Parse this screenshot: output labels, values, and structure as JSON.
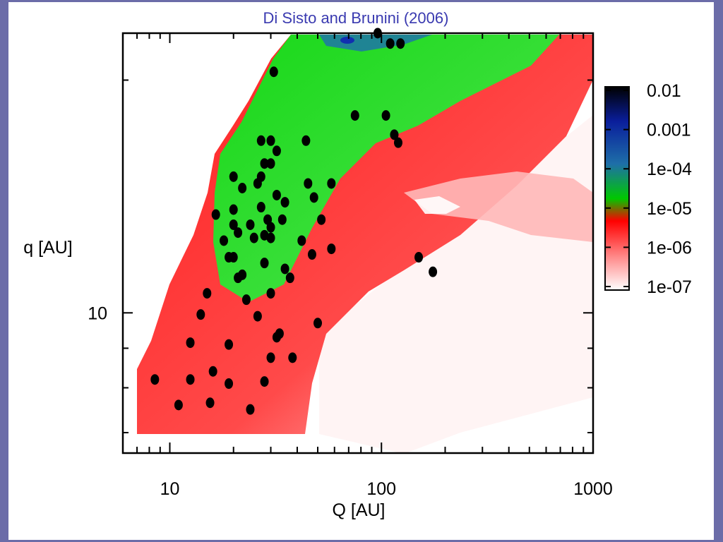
{
  "slide": {
    "title": "Di Sisto and Brunini (2006)",
    "background_color": "#6b6ca8",
    "title_color": "#3a3ab0"
  },
  "chart_data": {
    "type": "heatmap",
    "title": "Di Sisto and Brunini (2006)",
    "xlabel": "Q [AU]",
    "ylabel": "q [AU]",
    "x_scale": "log",
    "y_scale": "log",
    "xlim": [
      6,
      1000
    ],
    "ylim": [
      6.6,
      23
    ],
    "x_ticks": [
      {
        "value": 10,
        "label": "10"
      },
      {
        "value": 100,
        "label": "100"
      },
      {
        "value": 1000,
        "label": "1000"
      }
    ],
    "y_ticks": [
      {
        "value": 10,
        "label": "10"
      }
    ],
    "colorbar": {
      "scale": "log",
      "ticks": [
        "0.01",
        "0.001",
        "1e-04",
        "1e-05",
        "1e-06",
        "1e-07"
      ],
      "colors": [
        "#000000",
        "#0a1e9c",
        "#1e6fa8",
        "#00c800",
        "#ff0000",
        "#ff9090",
        "#ffffff"
      ]
    },
    "series": [
      {
        "type": "scatter",
        "color": "#000000",
        "points": [
          [
            96,
            23.0
          ],
          [
            110,
            22.3
          ],
          [
            123,
            22.3
          ],
          [
            31,
            20.5
          ],
          [
            75,
            18.0
          ],
          [
            105,
            18.0
          ],
          [
            115,
            17.0
          ],
          [
            120,
            16.6
          ],
          [
            27,
            16.7
          ],
          [
            30,
            16.7
          ],
          [
            44,
            16.7
          ],
          [
            32,
            16.2
          ],
          [
            28,
            15.6
          ],
          [
            30,
            15.6
          ],
          [
            27,
            15.0
          ],
          [
            20,
            15.0
          ],
          [
            26,
            14.7
          ],
          [
            45,
            14.7
          ],
          [
            58,
            14.7
          ],
          [
            22,
            14.5
          ],
          [
            32,
            14.2
          ],
          [
            48,
            14.1
          ],
          [
            35,
            13.9
          ],
          [
            27,
            13.7
          ],
          [
            20,
            13.6
          ],
          [
            16.5,
            13.4
          ],
          [
            29,
            13.2
          ],
          [
            34,
            13.2
          ],
          [
            52,
            13.2
          ],
          [
            20,
            13.0
          ],
          [
            24,
            13.0
          ],
          [
            30,
            12.9
          ],
          [
            21,
            12.7
          ],
          [
            28,
            12.6
          ],
          [
            25,
            12.5
          ],
          [
            30,
            12.5
          ],
          [
            18,
            12.4
          ],
          [
            42,
            12.4
          ],
          [
            58,
            12.1
          ],
          [
            47,
            11.9
          ],
          [
            150,
            11.8
          ],
          [
            20,
            11.8
          ],
          [
            19,
            11.8
          ],
          [
            28,
            11.6
          ],
          [
            35,
            11.4
          ],
          [
            175,
            11.3
          ],
          [
            22,
            11.2
          ],
          [
            21,
            11.1
          ],
          [
            37,
            11.1
          ],
          [
            15,
            10.6
          ],
          [
            30,
            10.6
          ],
          [
            23,
            10.4
          ],
          [
            14,
            9.95
          ],
          [
            26,
            9.9
          ],
          [
            50,
            9.7
          ],
          [
            33,
            9.4
          ],
          [
            32,
            9.3
          ],
          [
            12.5,
            9.15
          ],
          [
            19,
            9.1
          ],
          [
            30,
            8.75
          ],
          [
            38,
            8.75
          ],
          [
            16,
            8.4
          ],
          [
            8.5,
            8.2
          ],
          [
            12.5,
            8.2
          ],
          [
            19,
            8.1
          ],
          [
            28,
            8.15
          ],
          [
            11,
            7.6
          ],
          [
            15.5,
            7.65
          ],
          [
            24,
            7.5
          ]
        ]
      }
    ]
  }
}
